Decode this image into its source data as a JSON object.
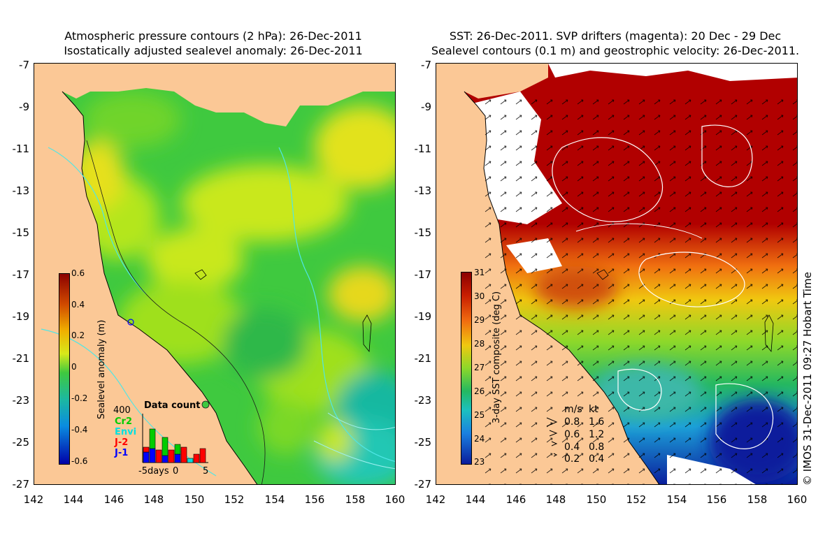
{
  "left_panel": {
    "title_line1": "Atmospheric pressure contours (2 hPa): 26-Dec-2011",
    "title_line2": "Isostatically adjusted sealevel anomaly: 26-Dec-2011",
    "colorbar": {
      "label": "Sealevel anomaly (m)",
      "ticks": [
        "0.6",
        "0.4",
        "0.2",
        "0",
        "-0.2",
        "-0.4",
        "-0.6"
      ],
      "range": [
        -0.6,
        0.6
      ]
    },
    "data_count": {
      "title": "Data count",
      "ymax_label": "400",
      "satellites": [
        {
          "name": "Cr2",
          "color": "#00cc00"
        },
        {
          "name": "Envi",
          "color": "#00e0e0"
        },
        {
          "name": "J-2",
          "color": "#ff0000"
        },
        {
          "name": "J-1",
          "color": "#0000ff"
        }
      ],
      "x_label_start": "-5days",
      "x_label_mid": "0",
      "x_label_end": "5"
    }
  },
  "right_panel": {
    "title_line1": "SST: 26-Dec-2011. SVP drifters (magenta): 20 Dec - 29 Dec",
    "title_line2": "Sealevel contours (0.1 m) and geostrophic velocity: 26-Dec-2011.",
    "colorbar": {
      "label": "3-day SST composite (deg C)",
      "ticks": [
        "31",
        "30",
        "29",
        "28",
        "27",
        "26",
        "25",
        "24",
        "23"
      ],
      "range": [
        23,
        31
      ]
    },
    "velocity_legend": {
      "header_ms": "m/s",
      "header_kt": "kt",
      "rows": [
        {
          "ms": "0.8",
          "kt": "1.6"
        },
        {
          "ms": "0.6",
          "kt": "1.2"
        },
        {
          "ms": "0.4",
          "kt": "0.8"
        },
        {
          "ms": "0.2",
          "kt": "0.4"
        }
      ]
    }
  },
  "axes": {
    "y_ticks": [
      "-7",
      "-9",
      "-11",
      "-13",
      "-15",
      "-17",
      "-19",
      "-21",
      "-23",
      "-25",
      "-27"
    ],
    "x_ticks": [
      "142",
      "144",
      "146",
      "148",
      "150",
      "152",
      "154",
      "156",
      "158",
      "160"
    ],
    "lon_range": [
      142,
      160
    ],
    "lat_range": [
      -27,
      -7
    ]
  },
  "credit": "© IMOS 31-Dec-2011 09:27 Hobart Time",
  "colors": {
    "land": "#fbc896",
    "ssh_base": "#3fc93f",
    "sst_hot": "#b10000",
    "cloud": "#ffffff"
  }
}
